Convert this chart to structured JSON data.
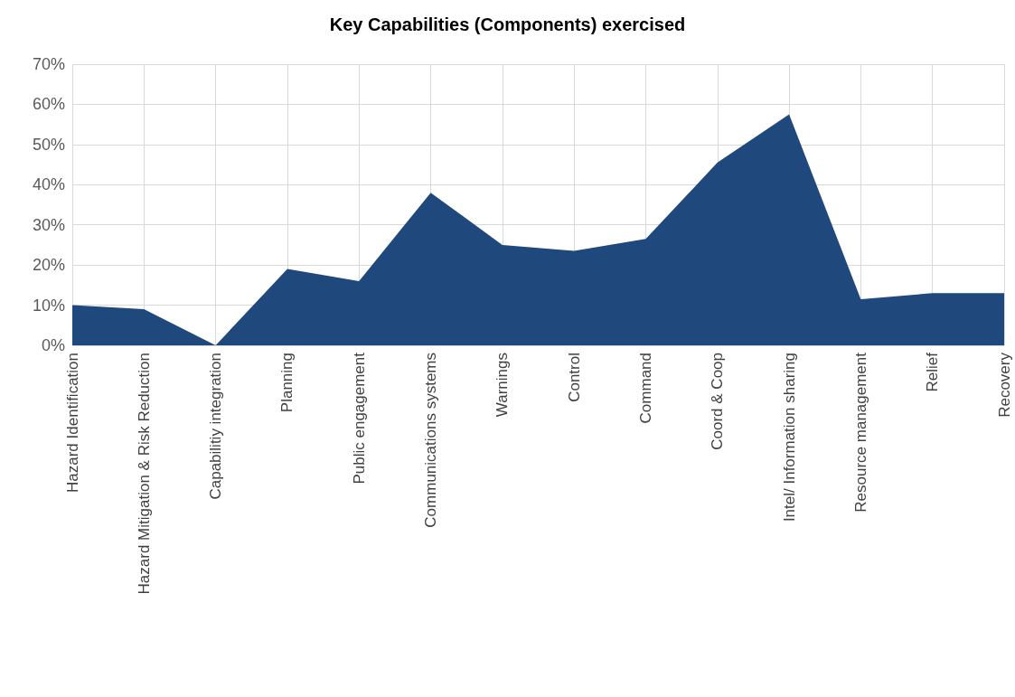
{
  "chart_data": {
    "type": "area",
    "title": "Key Capabilities (Components) exercised",
    "categories": [
      "Hazard Identification",
      "Hazard Mitigation & Risk Reduction",
      "Capabilitiy integration",
      "Planning",
      "Public engagement",
      "Communications systems",
      "Warnings",
      "Control",
      "Command",
      "Coord & Coop",
      "Intel/ Information sharing",
      "Resource management",
      "Relief",
      "Recovery"
    ],
    "series": [
      {
        "color": "#1f497d",
        "values": [
          10,
          9,
          0,
          19,
          16,
          38,
          25,
          23.5,
          26.5,
          45.5,
          57.5,
          11.5,
          13,
          13
        ]
      }
    ],
    "ylim": [
      0,
      70
    ],
    "yticks": [
      {
        "value": 0,
        "label": "0%"
      },
      {
        "value": 10,
        "label": "10%"
      },
      {
        "value": 20,
        "label": "20%"
      },
      {
        "value": 30,
        "label": "30%"
      },
      {
        "value": 40,
        "label": "40%"
      },
      {
        "value": 50,
        "label": "50%"
      },
      {
        "value": 60,
        "label": "60%"
      },
      {
        "value": 70,
        "label": "70%"
      }
    ],
    "grid": true
  }
}
